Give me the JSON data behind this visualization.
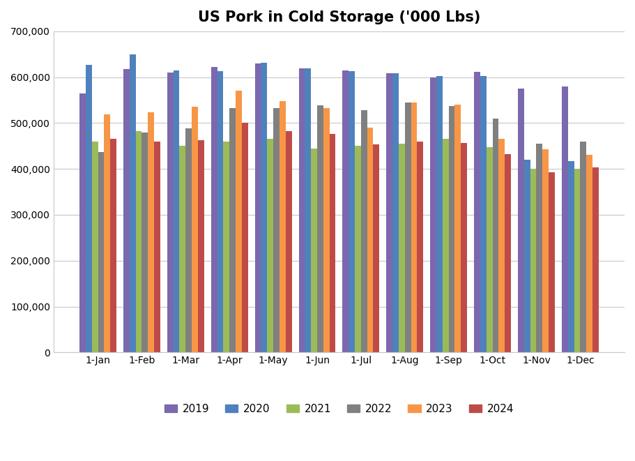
{
  "title": "US Pork in Cold Storage ('000 Lbs)",
  "months": [
    "1-Jan",
    "1-Feb",
    "1-Mar",
    "1-Apr",
    "1-May",
    "1-Jun",
    "1-Jul",
    "1-Aug",
    "1-Sep",
    "1-Oct",
    "1-Nov",
    "1-Dec"
  ],
  "series": {
    "2019": [
      565000,
      618000,
      610000,
      623000,
      630000,
      620000,
      614000,
      608000,
      600000,
      612000,
      575000,
      580000
    ],
    "2020": [
      627000,
      649000,
      615000,
      613000,
      631000,
      620000,
      613000,
      608000,
      603000,
      603000,
      420000,
      417000
    ],
    "2021": [
      460000,
      482000,
      450000,
      460000,
      465000,
      445000,
      450000,
      455000,
      465000,
      448000,
      400000,
      400000
    ],
    "2022": [
      437000,
      480000,
      488000,
      533000,
      533000,
      539000,
      528000,
      544000,
      537000,
      510000,
      455000,
      460000
    ],
    "2023": [
      519000,
      523000,
      536000,
      570000,
      548000,
      533000,
      490000,
      545000,
      540000,
      465000,
      443000,
      430000
    ],
    "2024": [
      465000,
      460000,
      463000,
      500000,
      483000,
      476000,
      453000,
      460000,
      456000,
      432000,
      393000,
      403000
    ]
  },
  "colors": {
    "2019": "#7B68AE",
    "2020": "#4F81BD",
    "2021": "#9BBB59",
    "2022": "#808080",
    "2023": "#F79646",
    "2024": "#BE4B48"
  },
  "ylim": [
    0,
    700000
  ],
  "ytick_step": 100000,
  "background_color": "#FFFFFF",
  "grid_color": "#C8C8C8",
  "bar_width": 0.14,
  "figsize": [
    9.11,
    6.61
  ],
  "dpi": 100
}
